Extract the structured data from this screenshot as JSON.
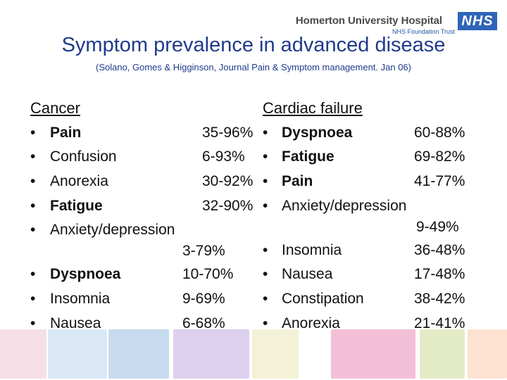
{
  "header": {
    "logo_name": "Homerton University Hospital",
    "logo_trust": "NHS Foundation Trust",
    "logo_nhs": "NHS"
  },
  "title": "Symptom prevalence in advanced disease",
  "subtitle": "(Solano, Gomes & Higginson, Journal Pain & Symptom management. Jan 06)",
  "cancer": {
    "heading": "Cancer",
    "bullet": "•",
    "items": [
      {
        "label": "Pain",
        "value": "35-96%"
      },
      {
        "label": "Confusion",
        "value": "6-93%"
      },
      {
        "label": "Anorexia",
        "value": "30-92%"
      },
      {
        "label": "Fatigue",
        "value": "32-90%"
      },
      {
        "label": "Anxiety/depression",
        "value": "3-79%"
      },
      {
        "label": "Dyspnoea",
        "value": "10-70%"
      },
      {
        "label": "Insomnia",
        "value": "9-69%"
      },
      {
        "label": "Nausea",
        "value": "6-68%"
      }
    ]
  },
  "cardiac": {
    "heading": "Cardiac failure",
    "bullet": "•",
    "items": [
      {
        "label": "Dyspnoea",
        "value": "60-88%"
      },
      {
        "label": "Fatigue",
        "value": "69-82%"
      },
      {
        "label": "Pain",
        "value": "41-77%"
      },
      {
        "label": "Anxiety/depression",
        "value": "9-49%"
      },
      {
        "label": "Insomnia",
        "value": "36-48%"
      },
      {
        "label": "Nausea",
        "value": "17-48%"
      },
      {
        "label": "Constipation",
        "value": "38-42%"
      },
      {
        "label": "Anorexia",
        "value": "21-41%"
      }
    ]
  },
  "colors": {
    "title": "#1f3b8c",
    "nhs_blue": "#2f64b8",
    "footer": [
      "#f6dfe7",
      "#d9e8f4",
      "#c6dbef",
      "#fce3b8",
      "#d7ecf1",
      "#dcd0ee",
      "#f4f2d6",
      "#f3bfd6",
      "#e3ebc6",
      "#fde2d1"
    ]
  }
}
